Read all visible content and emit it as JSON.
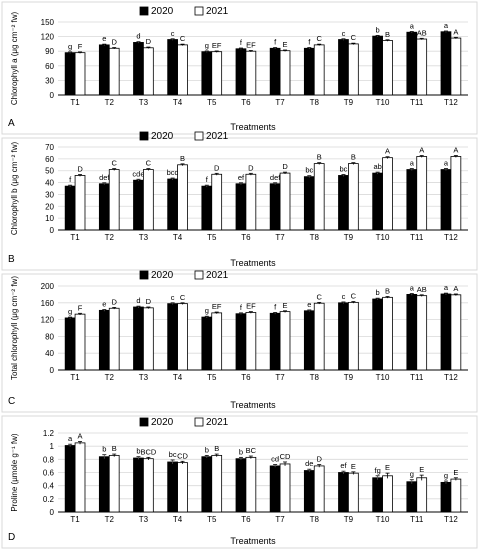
{
  "chart_data": [
    {
      "type": "bar",
      "panel_label": "A",
      "ylabel": "Chlorophyll a (μg cm⁻² fw)",
      "xlabel": "Treatments",
      "ylim": [
        0,
        150
      ],
      "yticks": [
        0,
        30,
        60,
        90,
        120,
        150
      ],
      "categories": [
        "T1",
        "T2",
        "T3",
        "T4",
        "T5",
        "T6",
        "T7",
        "T8",
        "T9",
        "T10",
        "T11",
        "T12"
      ],
      "series": [
        {
          "name": "2020",
          "color": "#000000",
          "values": [
            87,
            103,
            108,
            114,
            89,
            95,
            96,
            96,
            114,
            121,
            129,
            130
          ],
          "errors": [
            1.5,
            1.5,
            1.5,
            1.5,
            1.5,
            1.5,
            1.5,
            1.5,
            1.5,
            1.5,
            1.5,
            1.5
          ],
          "letters": [
            "g",
            "e",
            "d",
            "c",
            "g",
            "f",
            "f",
            "f",
            "c",
            "b",
            "a",
            "a"
          ]
        },
        {
          "name": "2021",
          "color": "#ffffff",
          "values": [
            87,
            96,
            97,
            103,
            89,
            90,
            91,
            103,
            105,
            112,
            115,
            117
          ],
          "errors": [
            1.5,
            1.5,
            1.5,
            1.5,
            1.5,
            1.5,
            1.5,
            1.5,
            1.5,
            1.5,
            1.5,
            1.5
          ],
          "letters": [
            "F",
            "D",
            "D",
            "C",
            "EF",
            "EF",
            "E",
            "C",
            "C",
            "B",
            "AB",
            "A"
          ]
        }
      ],
      "legend_position": "top-center"
    },
    {
      "type": "bar",
      "panel_label": "B",
      "ylabel": "Chlorophyll b (μg cm⁻² fw)",
      "xlabel": "Treatments",
      "ylim": [
        0,
        70
      ],
      "yticks": [
        0,
        10,
        20,
        30,
        40,
        50,
        60,
        70
      ],
      "categories": [
        "T1",
        "T2",
        "T3",
        "T4",
        "T5",
        "T6",
        "T7",
        "T8",
        "T9",
        "T10",
        "T11",
        "T12"
      ],
      "series": [
        {
          "name": "2020",
          "color": "#000000",
          "values": [
            37,
            39,
            42,
            43,
            37,
            39,
            39,
            45,
            46,
            48,
            51,
            51
          ],
          "errors": [
            0.8,
            0.8,
            0.8,
            0.8,
            0.8,
            0.8,
            0.8,
            0.8,
            0.8,
            0.8,
            0.8,
            0.8
          ],
          "letters": [
            "f",
            "def",
            "cde",
            "bcd",
            "f",
            "ef",
            "def",
            "bc",
            "bc",
            "ab",
            "a",
            "a"
          ]
        },
        {
          "name": "2021",
          "color": "#ffffff",
          "values": [
            46,
            51,
            51,
            55,
            47,
            47,
            48,
            56,
            56,
            61,
            62,
            62
          ],
          "errors": [
            0.8,
            0.8,
            0.8,
            0.8,
            0.8,
            0.8,
            0.8,
            0.8,
            0.8,
            0.8,
            0.8,
            0.8
          ],
          "letters": [
            "D",
            "C",
            "C",
            "B",
            "D",
            "D",
            "D",
            "B",
            "B",
            "A",
            "A",
            "A"
          ]
        }
      ],
      "legend_position": "top-center"
    },
    {
      "type": "bar",
      "panel_label": "C",
      "ylabel": "Total chlorophyll (μg cm⁻² fw)",
      "xlabel": "Treatments",
      "ylim": [
        0,
        200
      ],
      "yticks": [
        0,
        40,
        80,
        120,
        160,
        200
      ],
      "categories": [
        "T1",
        "T2",
        "T3",
        "T4",
        "T5",
        "T6",
        "T7",
        "T8",
        "T9",
        "T10",
        "T11",
        "T12"
      ],
      "series": [
        {
          "name": "2020",
          "color": "#000000",
          "values": [
            124,
            142,
            150,
            158,
            126,
            134,
            135,
            141,
            160,
            169,
            180,
            181
          ],
          "errors": [
            2,
            2,
            2,
            2,
            2,
            2,
            2,
            2,
            2,
            2,
            2,
            2
          ],
          "letters": [
            "g",
            "e",
            "d",
            "c",
            "g",
            "f",
            "f",
            "e",
            "c",
            "b",
            "a",
            "a"
          ]
        },
        {
          "name": "2021",
          "color": "#ffffff",
          "values": [
            133,
            147,
            148,
            158,
            136,
            137,
            139,
            159,
            161,
            173,
            177,
            179
          ],
          "errors": [
            2,
            2,
            2,
            2,
            2,
            2,
            2,
            2,
            2,
            2,
            2,
            2
          ],
          "letters": [
            "F",
            "D",
            "D",
            "C",
            "EF",
            "EF",
            "E",
            "C",
            "C",
            "B",
            "AB",
            "A"
          ]
        }
      ],
      "legend_position": "top-center"
    },
    {
      "type": "bar",
      "panel_label": "D",
      "ylabel": "Proline (µmole g⁻¹ fw)",
      "xlabel": "Treatments",
      "ylim": [
        0,
        1.2
      ],
      "yticks": [
        0,
        0.2,
        0.4,
        0.6,
        0.8,
        1.0,
        1.2
      ],
      "ytick_labels": [
        "0",
        "0.2",
        "0.4",
        "0.6",
        "0.8",
        "1",
        "1.2"
      ],
      "categories": [
        "T1",
        "T2",
        "T3",
        "T4",
        "T5",
        "T6",
        "T7",
        "T8",
        "T9",
        "T10",
        "T11",
        "T12"
      ],
      "series": [
        {
          "name": "2020",
          "color": "#000000",
          "values": [
            1.01,
            0.84,
            0.82,
            0.76,
            0.84,
            0.81,
            0.7,
            0.63,
            0.6,
            0.52,
            0.46,
            0.45
          ],
          "errors": [
            0.02,
            0.03,
            0.02,
            0.03,
            0.02,
            0.02,
            0.02,
            0.02,
            0.02,
            0.03,
            0.03,
            0.02
          ],
          "letters": [
            "a",
            "b",
            "b",
            "bc",
            "b",
            "b",
            "cd",
            "de",
            "ef",
            "fg",
            "g",
            "g"
          ]
        },
        {
          "name": "2021",
          "color": "#ffffff",
          "values": [
            1.05,
            0.86,
            0.81,
            0.75,
            0.86,
            0.83,
            0.73,
            0.7,
            0.59,
            0.55,
            0.52,
            0.5
          ],
          "errors": [
            0.02,
            0.02,
            0.02,
            0.02,
            0.02,
            0.02,
            0.03,
            0.02,
            0.02,
            0.04,
            0.04,
            0.02
          ],
          "letters": [
            "A",
            "B",
            "BCD",
            "CD",
            "B",
            "BC",
            "CD",
            "D",
            "E",
            "E",
            "E",
            "E"
          ]
        }
      ],
      "legend_position": "top-center"
    }
  ]
}
